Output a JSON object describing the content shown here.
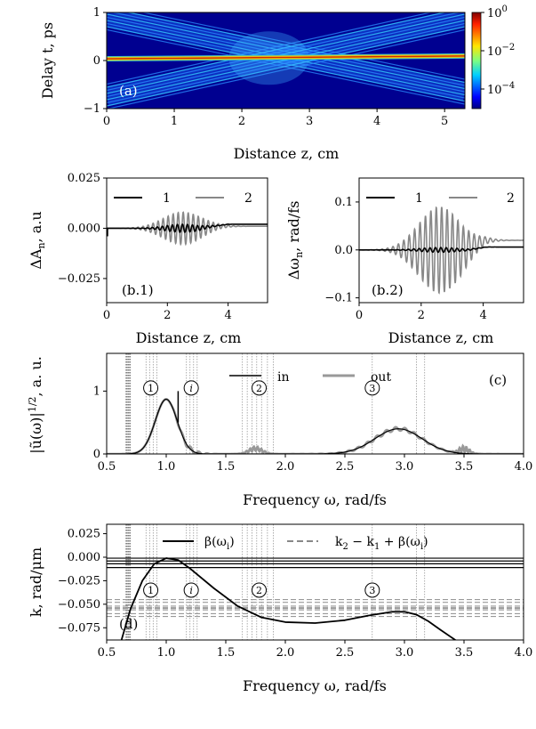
{
  "chart_data": [
    {
      "id": "a",
      "type": "heatmap",
      "panel_label": "(a)",
      "xlabel": "Distance z, cm",
      "ylabel": "Delay t, ps",
      "xlim": [
        0,
        5.3
      ],
      "ylim": [
        -1,
        1
      ],
      "xticks": [
        "0",
        "1",
        "2",
        "3",
        "4",
        "5"
      ],
      "yticks": [
        "−1",
        "0",
        "1"
      ],
      "colorbar": {
        "scale": "log",
        "ticks": [
          "10^0",
          "10^-2",
          "10^-4"
        ],
        "range": [
          1e-05,
          1
        ]
      },
      "features": [
        {
          "name": "soliton",
          "t_start": 0.03,
          "t_end": 0.1,
          "intensity": 1.0
        },
        {
          "name": "wave-1",
          "z": [
            0.0,
            5.3
          ],
          "t": [
            0.9,
            -0.65
          ],
          "intensity": 0.001
        },
        {
          "name": "wave-2",
          "z": [
            0.0,
            5.3
          ],
          "t": [
            -0.75,
            0.9
          ],
          "intensity": 0.001
        }
      ]
    },
    {
      "id": "b1",
      "type": "line",
      "panel_label": "(b.1)",
      "xlabel": "Distance z, cm",
      "ylabel": "ΔA_n, a.u",
      "xlim": [
        0,
        5.3
      ],
      "ylim": [
        -0.037,
        0.025
      ],
      "xticks": [
        "0",
        "2",
        "4"
      ],
      "yticks": [
        "0.025",
        "0.000",
        "−0.025"
      ],
      "legend": {
        "position": "top",
        "entries": [
          "1",
          "2"
        ]
      },
      "series": [
        {
          "name": "1",
          "color": "#000000",
          "envelope_peak": 0.002,
          "center": 2.5,
          "final": 0.002
        },
        {
          "name": "2",
          "color": "#888888",
          "envelope_peak": 0.008,
          "center": 2.5,
          "final": 0.001
        }
      ]
    },
    {
      "id": "b2",
      "type": "line",
      "panel_label": "(b.2)",
      "xlabel": "Distance z, cm",
      "ylabel": "Δω_n, rad/fs",
      "xlim": [
        0,
        5.3
      ],
      "ylim": [
        -0.11,
        0.15
      ],
      "xticks": [
        "0",
        "2",
        "4"
      ],
      "yticks": [
        "0.1",
        "0.0",
        "−0.1"
      ],
      "legend": {
        "position": "top",
        "entries": [
          "1",
          "2"
        ]
      },
      "series": [
        {
          "name": "1",
          "color": "#000000",
          "envelope_peak": 0.005,
          "center": 2.6,
          "final": 0.006
        },
        {
          "name": "2",
          "color": "#888888",
          "envelope_peak": 0.09,
          "center": 2.6,
          "final": 0.02
        }
      ]
    },
    {
      "id": "c",
      "type": "line",
      "panel_label": "(c)",
      "xlabel": "Frequency ω, rad/fs",
      "ylabel": "|ũ(ω)|^1/2, a. u.",
      "xlim": [
        0.5,
        4.0
      ],
      "ylim": [
        0,
        1.6
      ],
      "xticks": [
        "0.5",
        "1.0",
        "1.5",
        "2.0",
        "2.5",
        "3.0",
        "3.5",
        "4.0"
      ],
      "yticks": [
        "0",
        "1"
      ],
      "legend": {
        "position": "top-center",
        "entries": [
          "in",
          "out"
        ]
      },
      "series": [
        {
          "name": "in",
          "color": "#000000",
          "peaks": [
            [
              1.0,
              0.87
            ],
            [
              2.95,
              0.4
            ]
          ]
        },
        {
          "name": "out",
          "color": "#999999",
          "peaks": [
            [
              1.0,
              0.87
            ],
            [
              1.75,
              0.15
            ],
            [
              2.95,
              0.42
            ],
            [
              3.5,
              0.15
            ]
          ]
        }
      ],
      "annotations": [
        {
          "text": "1",
          "x": 0.87,
          "y": 1.05
        },
        {
          "text": "i",
          "x": 1.21,
          "y": 1.05
        },
        {
          "text": "2",
          "x": 1.78,
          "y": 1.05
        },
        {
          "text": "3",
          "x": 2.73,
          "y": 1.05
        }
      ]
    },
    {
      "id": "d",
      "type": "line",
      "panel_label": "(d)",
      "xlabel": "Frequency ω, rad/fs",
      "ylabel": "k, rad/μm",
      "xlim": [
        0.5,
        4.0
      ],
      "ylim": [
        -0.088,
        0.035
      ],
      "xticks": [
        "0.5",
        "1.0",
        "1.5",
        "2.0",
        "2.5",
        "3.0",
        "3.5",
        "4.0"
      ],
      "yticks": [
        "0.025",
        "0.000",
        "−0.025",
        "−0.050",
        "−0.075"
      ],
      "legend": {
        "position": "top",
        "entries": [
          "β(ω_i)",
          "k_2 − k_1 + β(ω_i)"
        ]
      },
      "series": [
        {
          "name": "β(ω_i)",
          "color": "#000000",
          "x": [
            0.62,
            0.7,
            0.8,
            0.9,
            1.0,
            1.1,
            1.2,
            1.4,
            1.6,
            1.8,
            2.0,
            2.25,
            2.5,
            2.7,
            2.9,
            3.0,
            3.1,
            3.2,
            3.3,
            3.45
          ],
          "y": [
            -0.09,
            -0.055,
            -0.025,
            -0.007,
            -0.001,
            -0.003,
            -0.012,
            -0.033,
            -0.052,
            -0.064,
            -0.069,
            -0.07,
            -0.067,
            -0.062,
            -0.058,
            -0.058,
            -0.061,
            -0.068,
            -0.077,
            -0.09
          ]
        },
        {
          "name": "k_2 − k_1 + β(ω_i)",
          "color": "#999999",
          "style": "dashed",
          "levels": [
            -0.045,
            -0.048,
            -0.052,
            -0.054,
            -0.056,
            -0.06,
            -0.063
          ]
        }
      ],
      "hlines_solid": [
        -0.001,
        -0.004,
        -0.007,
        -0.011
      ],
      "annotations": [
        {
          "text": "1",
          "x": 0.87
        },
        {
          "text": "i",
          "x": 1.21
        },
        {
          "text": "2",
          "x": 1.78
        },
        {
          "text": "3",
          "x": 2.73
        }
      ]
    }
  ],
  "colors": {
    "black": "#000000",
    "gray": "#888888",
    "lightgray": "#999999"
  }
}
